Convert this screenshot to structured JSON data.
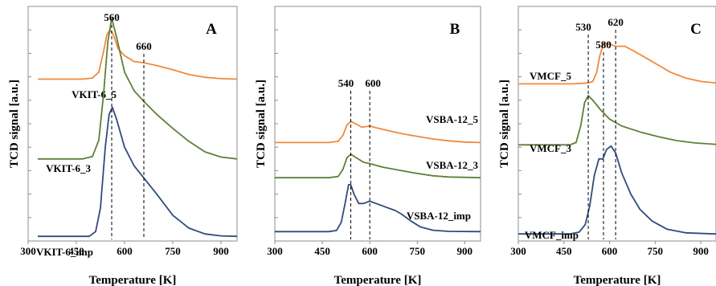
{
  "chart_data": [
    {
      "type": "line",
      "panel_letter": "A",
      "xlabel": "Temperature [K]",
      "ylabel": "TCD signal [a.u.]",
      "xlim": [
        300,
        950
      ],
      "x_ticks": [
        300,
        450,
        600,
        750,
        900
      ],
      "y_ticks_unlabeled": 9,
      "peak_markers": [
        560,
        660
      ],
      "series": [
        {
          "name": "VKIT-6_5",
          "color": "#f08a3c",
          "offset": 0.69,
          "points": [
            [
              330,
              0
            ],
            [
              470,
              0
            ],
            [
              500,
              0.005
            ],
            [
              520,
              0.03
            ],
            [
              535,
              0.12
            ],
            [
              545,
              0.19
            ],
            [
              555,
              0.21
            ],
            [
              565,
              0.19
            ],
            [
              580,
              0.13
            ],
            [
              600,
              0.1
            ],
            [
              630,
              0.075
            ],
            [
              660,
              0.07
            ],
            [
              700,
              0.058
            ],
            [
              750,
              0.04
            ],
            [
              800,
              0.02
            ],
            [
              850,
              0.008
            ],
            [
              900,
              0.002
            ],
            [
              950,
              0
            ]
          ]
        },
        {
          "name": "VKIT-6_3",
          "color": "#5f7f3a",
          "offset": 0.35,
          "points": [
            [
              330,
              0
            ],
            [
              470,
              0
            ],
            [
              500,
              0.01
            ],
            [
              520,
              0.08
            ],
            [
              535,
              0.28
            ],
            [
              548,
              0.5
            ],
            [
              560,
              0.6
            ],
            [
              575,
              0.52
            ],
            [
              600,
              0.37
            ],
            [
              630,
              0.29
            ],
            [
              660,
              0.245
            ],
            [
              700,
              0.19
            ],
            [
              750,
              0.13
            ],
            [
              800,
              0.075
            ],
            [
              850,
              0.03
            ],
            [
              900,
              0.008
            ],
            [
              950,
              0
            ]
          ]
        },
        {
          "name": "VKIT-6_imp",
          "color": "#2f4b7c",
          "offset": 0.02,
          "points": [
            [
              330,
              0
            ],
            [
              490,
              0
            ],
            [
              510,
              0.02
            ],
            [
              525,
              0.12
            ],
            [
              540,
              0.38
            ],
            [
              552,
              0.52
            ],
            [
              562,
              0.55
            ],
            [
              575,
              0.5
            ],
            [
              600,
              0.38
            ],
            [
              630,
              0.3
            ],
            [
              665,
              0.24
            ],
            [
              700,
              0.18
            ],
            [
              750,
              0.09
            ],
            [
              800,
              0.035
            ],
            [
              850,
              0.01
            ],
            [
              900,
              0.002
            ],
            [
              950,
              0
            ]
          ]
        }
      ]
    },
    {
      "type": "line",
      "panel_letter": "B",
      "xlabel": "Temperature [K]",
      "ylabel": "TCD signal [a.u.]",
      "xlim": [
        300,
        950
      ],
      "x_ticks": [
        300,
        450,
        600,
        750,
        900
      ],
      "y_ticks_unlabeled": 9,
      "peak_markers": [
        540,
        600
      ],
      "series": [
        {
          "name": "VSBA-12_5",
          "color": "#f08a3c",
          "offset": 0.42,
          "points": [
            [
              300,
              0
            ],
            [
              470,
              0
            ],
            [
              500,
              0.005
            ],
            [
              515,
              0.03
            ],
            [
              528,
              0.075
            ],
            [
              540,
              0.09
            ],
            [
              555,
              0.08
            ],
            [
              575,
              0.065
            ],
            [
              600,
              0.07
            ],
            [
              620,
              0.063
            ],
            [
              660,
              0.05
            ],
            [
              700,
              0.038
            ],
            [
              750,
              0.026
            ],
            [
              800,
              0.015
            ],
            [
              850,
              0.007
            ],
            [
              900,
              0.002
            ],
            [
              950,
              0
            ]
          ]
        },
        {
          "name": "VSBA-12_3",
          "color": "#5f7f3a",
          "offset": 0.27,
          "points": [
            [
              300,
              0
            ],
            [
              470,
              0
            ],
            [
              500,
              0.005
            ],
            [
              515,
              0.035
            ],
            [
              528,
              0.085
            ],
            [
              540,
              0.1
            ],
            [
              555,
              0.087
            ],
            [
              580,
              0.066
            ],
            [
              600,
              0.06
            ],
            [
              640,
              0.045
            ],
            [
              700,
              0.03
            ],
            [
              750,
              0.018
            ],
            [
              800,
              0.008
            ],
            [
              850,
              0.003
            ],
            [
              950,
              0
            ]
          ]
        },
        {
          "name": "VSBA-12_imp",
          "color": "#2f4b7c",
          "offset": 0.04,
          "points": [
            [
              300,
              0
            ],
            [
              470,
              0
            ],
            [
              495,
              0.005
            ],
            [
              510,
              0.04
            ],
            [
              522,
              0.12
            ],
            [
              533,
              0.2
            ],
            [
              540,
              0.2
            ],
            [
              550,
              0.16
            ],
            [
              565,
              0.12
            ],
            [
              580,
              0.12
            ],
            [
              600,
              0.13
            ],
            [
              620,
              0.12
            ],
            [
              650,
              0.105
            ],
            [
              680,
              0.09
            ],
            [
              700,
              0.075
            ],
            [
              730,
              0.045
            ],
            [
              760,
              0.02
            ],
            [
              800,
              0.006
            ],
            [
              850,
              0.001
            ],
            [
              950,
              0
            ]
          ]
        }
      ]
    },
    {
      "type": "line",
      "panel_letter": "C",
      "xlabel": "Temperature [K]",
      "ylabel": "TCD signal [a.u.]",
      "xlim": [
        300,
        950
      ],
      "x_ticks": [
        300,
        450,
        600,
        750,
        900
      ],
      "y_ticks_unlabeled": 9,
      "peak_markers": [
        530,
        580,
        620
      ],
      "series": [
        {
          "name": "VMCF_5",
          "color": "#f08a3c",
          "offset": 0.67,
          "points": [
            [
              300,
              0
            ],
            [
              480,
              0
            ],
            [
              530,
              0.004
            ],
            [
              545,
              0.01
            ],
            [
              558,
              0.05
            ],
            [
              568,
              0.12
            ],
            [
              580,
              0.17
            ],
            [
              600,
              0.17
            ],
            [
              620,
              0.16
            ],
            [
              650,
              0.16
            ],
            [
              680,
              0.14
            ],
            [
              720,
              0.11
            ],
            [
              760,
              0.08
            ],
            [
              800,
              0.05
            ],
            [
              850,
              0.025
            ],
            [
              900,
              0.01
            ],
            [
              950,
              0.004
            ]
          ]
        },
        {
          "name": "VMCF_3",
          "color": "#5f7f3a",
          "offset": 0.41,
          "points": [
            [
              300,
              0
            ],
            [
              470,
              0
            ],
            [
              490,
              0.01
            ],
            [
              505,
              0.08
            ],
            [
              518,
              0.18
            ],
            [
              530,
              0.21
            ],
            [
              545,
              0.19
            ],
            [
              570,
              0.15
            ],
            [
              600,
              0.11
            ],
            [
              640,
              0.08
            ],
            [
              700,
              0.055
            ],
            [
              760,
              0.035
            ],
            [
              820,
              0.018
            ],
            [
              880,
              0.008
            ],
            [
              950,
              0.002
            ]
          ]
        },
        {
          "name": "VMCF_imp",
          "color": "#2f4b7c",
          "offset": 0.03,
          "points": [
            [
              300,
              0
            ],
            [
              470,
              0
            ],
            [
              500,
              0.008
            ],
            [
              520,
              0.04
            ],
            [
              535,
              0.12
            ],
            [
              550,
              0.25
            ],
            [
              565,
              0.32
            ],
            [
              578,
              0.32
            ],
            [
              590,
              0.36
            ],
            [
              605,
              0.375
            ],
            [
              620,
              0.345
            ],
            [
              640,
              0.26
            ],
            [
              670,
              0.17
            ],
            [
              700,
              0.105
            ],
            [
              740,
              0.055
            ],
            [
              790,
              0.02
            ],
            [
              850,
              0.005
            ],
            [
              950,
              0
            ]
          ]
        }
      ]
    }
  ]
}
